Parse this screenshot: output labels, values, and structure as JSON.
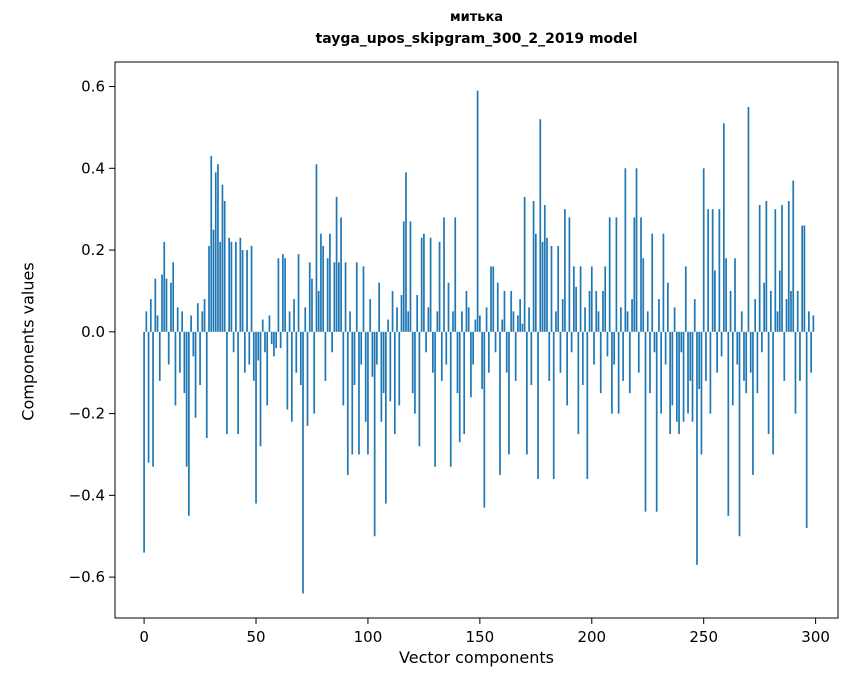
{
  "chart_data": {
    "type": "bar",
    "title": "митька",
    "subtitle": "tayga_upos_skipgram_300_2_2019 model",
    "xlabel": "Vector components",
    "ylabel": "Components values",
    "bar_color": "#1f77b4",
    "grid": false,
    "legend": "none",
    "xlim": [
      -13,
      310
    ],
    "ylim": [
      -0.7,
      0.66
    ],
    "xticks": [
      0,
      50,
      100,
      150,
      200,
      250,
      300
    ],
    "yticks": [
      -0.6,
      -0.4,
      -0.2,
      0.0,
      0.2,
      0.4,
      0.6
    ],
    "x": "index 0..299",
    "values": [
      -0.54,
      0.05,
      -0.32,
      0.08,
      -0.33,
      0.13,
      0.04,
      -0.12,
      0.14,
      0.22,
      0.13,
      -0.08,
      0.12,
      0.17,
      -0.18,
      0.06,
      -0.1,
      0.05,
      -0.15,
      -0.33,
      -0.45,
      0.04,
      -0.06,
      -0.21,
      0.07,
      -0.13,
      0.05,
      0.08,
      -0.26,
      0.21,
      0.43,
      0.25,
      0.39,
      0.41,
      0.22,
      0.36,
      0.32,
      -0.25,
      0.23,
      0.22,
      -0.05,
      0.22,
      -0.25,
      0.23,
      0.2,
      -0.1,
      0.2,
      -0.08,
      0.21,
      -0.12,
      -0.42,
      -0.07,
      -0.28,
      0.03,
      -0.05,
      -0.18,
      0.04,
      -0.03,
      -0.06,
      -0.04,
      0.18,
      -0.04,
      0.19,
      0.18,
      -0.19,
      0.05,
      -0.22,
      0.08,
      -0.1,
      0.19,
      -0.13,
      -0.64,
      0.06,
      -0.23,
      0.17,
      0.13,
      -0.2,
      0.41,
      0.1,
      0.24,
      0.21,
      -0.12,
      0.18,
      0.24,
      -0.05,
      0.17,
      0.33,
      0.17,
      0.28,
      -0.18,
      0.17,
      -0.35,
      0.05,
      -0.3,
      -0.13,
      0.17,
      -0.3,
      -0.08,
      0.16,
      -0.22,
      -0.3,
      0.08,
      -0.11,
      -0.5,
      -0.08,
      0.12,
      -0.22,
      -0.15,
      -0.42,
      0.03,
      -0.17,
      0.1,
      -0.25,
      0.06,
      -0.18,
      0.09,
      0.27,
      0.39,
      0.05,
      0.27,
      -0.15,
      -0.2,
      0.09,
      -0.28,
      0.23,
      0.24,
      -0.05,
      0.06,
      0.23,
      -0.1,
      -0.33,
      0.05,
      0.22,
      -0.12,
      0.28,
      -0.08,
      0.12,
      -0.33,
      0.05,
      0.28,
      -0.15,
      -0.27,
      0.05,
      -0.25,
      0.1,
      0.06,
      -0.16,
      -0.08,
      0.03,
      0.59,
      0.04,
      -0.14,
      -0.43,
      0.06,
      -0.1,
      0.16,
      0.16,
      -0.05,
      0.12,
      -0.35,
      0.03,
      0.1,
      -0.1,
      -0.3,
      0.1,
      0.05,
      -0.12,
      0.04,
      0.08,
      0.02,
      0.33,
      -0.3,
      0.06,
      -0.13,
      0.32,
      0.24,
      -0.36,
      0.52,
      0.22,
      0.31,
      0.23,
      -0.12,
      0.21,
      -0.36,
      0.05,
      0.21,
      -0.1,
      0.08,
      0.3,
      -0.18,
      0.28,
      -0.05,
      0.16,
      0.11,
      -0.25,
      0.16,
      -0.13,
      0.06,
      -0.36,
      0.1,
      0.16,
      -0.08,
      0.1,
      0.05,
      -0.15,
      0.1,
      0.16,
      -0.06,
      0.28,
      -0.2,
      -0.08,
      0.28,
      -0.2,
      0.06,
      -0.12,
      0.4,
      0.05,
      -0.15,
      0.08,
      0.28,
      0.4,
      -0.1,
      0.28,
      0.18,
      -0.44,
      0.05,
      -0.15,
      0.24,
      -0.05,
      -0.44,
      0.08,
      -0.2,
      0.24,
      -0.08,
      0.12,
      -0.25,
      -0.18,
      0.06,
      -0.22,
      -0.25,
      -0.05,
      -0.22,
      0.16,
      -0.2,
      -0.12,
      -0.22,
      0.08,
      -0.57,
      -0.14,
      -0.3,
      0.4,
      -0.12,
      0.3,
      -0.2,
      0.3,
      0.15,
      -0.1,
      0.3,
      -0.06,
      0.51,
      0.18,
      -0.45,
      0.1,
      -0.18,
      0.18,
      -0.08,
      -0.5,
      0.05,
      -0.12,
      -0.15,
      0.55,
      -0.1,
      -0.35,
      0.08,
      -0.15,
      0.31,
      -0.05,
      0.12,
      0.32,
      -0.25,
      0.1,
      -0.3,
      0.3,
      0.05,
      0.15,
      0.31,
      -0.12,
      0.08,
      0.32,
      0.1,
      0.37,
      -0.2,
      0.1,
      -0.12,
      0.26,
      0.26,
      -0.48,
      0.05,
      -0.1,
      0.04
    ]
  }
}
